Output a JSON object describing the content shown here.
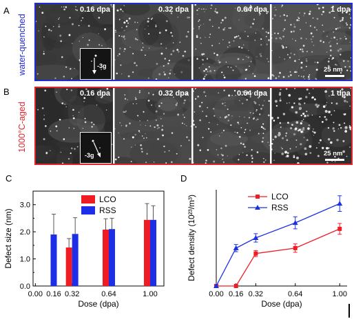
{
  "panels": {
    "A": {
      "letter": "A",
      "row_label": "water-quenched",
      "doses": [
        "0.16 dpa",
        "0.32 dpa",
        "0.64 dpa",
        "1 dpa"
      ],
      "inset_label": "-3g",
      "scale_bar": "25 nm",
      "frame_color": "#1f2bd6"
    },
    "B": {
      "letter": "B",
      "row_label": "1000°C-aged",
      "doses": [
        "0.16 dpa",
        "0.32 dpa",
        "0.64 dpa",
        "1 dpa"
      ],
      "inset_label": "-3g",
      "scale_bar": "25 nm",
      "frame_color": "#e0262b"
    },
    "C": {
      "letter": "C"
    },
    "D": {
      "letter": "D"
    }
  },
  "chart_data": [
    {
      "type": "bar",
      "panel": "C",
      "xlabel": "Dose (dpa)",
      "ylabel": "Defect size (nm)",
      "ylim": [
        0,
        3.5
      ],
      "yticks": [
        "0.0",
        "1.0",
        "2.0",
        "3.0"
      ],
      "ytick_values": [
        0,
        1,
        2,
        3
      ],
      "xticks": [
        "0.00",
        "0.16",
        "0.32",
        "0.64",
        "1.00"
      ],
      "xtick_positions": [
        0,
        0.16,
        0.32,
        0.64,
        1.0
      ],
      "legend_placement": "top",
      "series": [
        {
          "name": "LCO",
          "color": "#ee1c24",
          "x": [
            0.32,
            0.64,
            1.0
          ],
          "values": [
            1.42,
            2.08,
            2.44
          ],
          "errors": [
            0.33,
            0.4,
            0.6
          ]
        },
        {
          "name": "RSS",
          "color": "#1c2fe6",
          "x": [
            0.16,
            0.32,
            0.64,
            1.0
          ],
          "values": [
            1.9,
            1.92,
            2.1,
            2.44
          ],
          "errors": [
            0.75,
            0.6,
            0.4,
            0.52
          ]
        }
      ]
    },
    {
      "type": "line",
      "panel": "D",
      "xlabel": "Dose (dpa)",
      "ylabel": "Defect density (10²³/m³)",
      "ylim": [
        0,
        1.6
      ],
      "xticks": [
        "0.00",
        "0.16",
        "0.32",
        "0.64",
        "1.00"
      ],
      "xtick_positions": [
        0,
        0.16,
        0.32,
        0.64,
        1.0
      ],
      "legend_placement": "top-left",
      "series": [
        {
          "name": "LCO",
          "color": "#ee1c24",
          "marker": "square",
          "x": [
            0,
            0.16,
            0.32,
            0.64,
            1.0
          ],
          "values": [
            0,
            0,
            0.54,
            0.63,
            0.95
          ],
          "errors": [
            0,
            0,
            0.05,
            0.07,
            0.09
          ]
        },
        {
          "name": "RSS",
          "color": "#1c2fe6",
          "marker": "triangle",
          "x": [
            0,
            0.16,
            0.32,
            0.64,
            1.0
          ],
          "values": [
            0,
            0.63,
            0.8,
            1.05,
            1.37
          ],
          "errors": [
            0,
            0.06,
            0.07,
            0.1,
            0.13
          ]
        }
      ]
    }
  ]
}
